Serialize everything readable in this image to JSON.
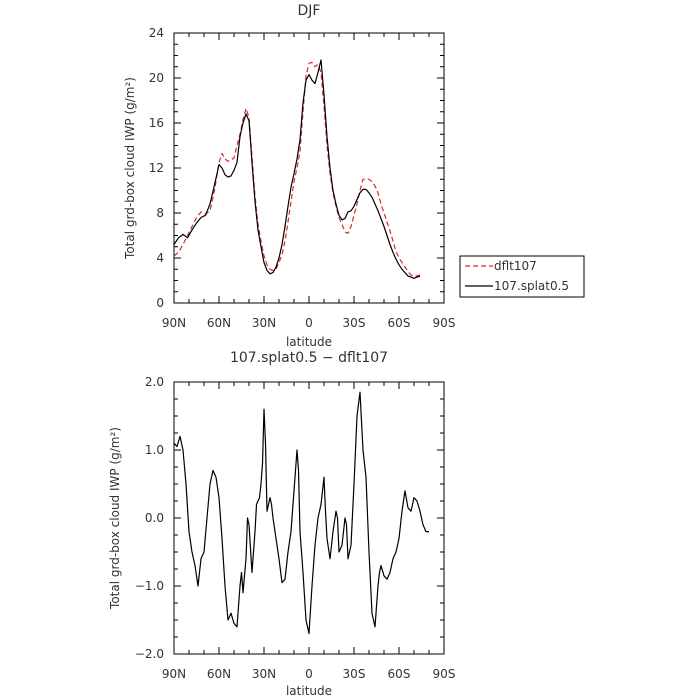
{
  "chart_data": [
    {
      "type": "line",
      "title": "DJF",
      "xlabel": "latitude",
      "ylabel": "Total grd-box cloud IWP (g/m²)",
      "xlim": [
        90,
        -90
      ],
      "ylim": [
        0,
        24
      ],
      "x_ticks": [
        90,
        60,
        30,
        0,
        -30,
        -60,
        -90
      ],
      "x_tick_labels": [
        "90N",
        "60N",
        "30N",
        "0",
        "30S",
        "60S",
        "90S"
      ],
      "y_ticks": [
        0,
        4,
        8,
        12,
        16,
        20,
        24
      ],
      "y_tick_labels": [
        "0",
        "4",
        "8",
        "12",
        "16",
        "20",
        "24"
      ],
      "legend_position": "right",
      "series": [
        {
          "name": "dflt107",
          "color": "#d62728",
          "dash": "dashed",
          "points": [
            [
              90,
              4.2
            ],
            [
              87,
              4.5
            ],
            [
              84,
              5.2
            ],
            [
              81,
              6.0
            ],
            [
              78,
              6.8
            ],
            [
              75,
              7.6
            ],
            [
              72,
              8.1
            ],
            [
              69,
              7.9
            ],
            [
              66,
              8.2
            ],
            [
              63,
              10.0
            ],
            [
              60,
              12.5
            ],
            [
              58,
              13.3
            ],
            [
              56,
              12.8
            ],
            [
              54,
              12.6
            ],
            [
              52,
              12.7
            ],
            [
              50,
              12.9
            ],
            [
              48,
              14.0
            ],
            [
              46,
              15.0
            ],
            [
              44,
              16.3
            ],
            [
              42,
              17.3
            ],
            [
              40,
              16.5
            ],
            [
              38,
              13.0
            ],
            [
              36,
              9.5
            ],
            [
              34,
              7.0
            ],
            [
              32,
              5.5
            ],
            [
              30,
              4.2
            ],
            [
              28,
              3.4
            ],
            [
              26,
              3.0
            ],
            [
              24,
              2.9
            ],
            [
              22,
              3.0
            ],
            [
              20,
              3.6
            ],
            [
              18,
              4.3
            ],
            [
              16,
              5.5
            ],
            [
              14,
              7.2
            ],
            [
              12,
              9.0
            ],
            [
              10,
              10.8
            ],
            [
              8,
              12.0
            ],
            [
              6,
              13.5
            ],
            [
              4,
              17.0
            ],
            [
              2,
              20.2
            ],
            [
              0,
              21.3
            ],
            [
              -2,
              21.4
            ],
            [
              -4,
              21.0
            ],
            [
              -6,
              21.2
            ],
            [
              -8,
              20.5
            ],
            [
              -10,
              17.5
            ],
            [
              -12,
              14.0
            ],
            [
              -14,
              11.5
            ],
            [
              -16,
              9.8
            ],
            [
              -18,
              8.6
            ],
            [
              -20,
              7.6
            ],
            [
              -22,
              7.0
            ],
            [
              -24,
              6.3
            ],
            [
              -26,
              6.2
            ],
            [
              -28,
              6.8
            ],
            [
              -30,
              7.8
            ],
            [
              -32,
              8.8
            ],
            [
              -34,
              10.0
            ],
            [
              -36,
              11.0
            ],
            [
              -38,
              11.0
            ],
            [
              -40,
              11.0
            ],
            [
              -42,
              10.8
            ],
            [
              -44,
              10.4
            ],
            [
              -46,
              9.8
            ],
            [
              -48,
              8.8
            ],
            [
              -50,
              8.0
            ],
            [
              -52,
              7.2
            ],
            [
              -54,
              6.4
            ],
            [
              -56,
              5.5
            ],
            [
              -58,
              4.6
            ],
            [
              -60,
              4.0
            ],
            [
              -62,
              3.6
            ],
            [
              -64,
              3.2
            ],
            [
              -66,
              2.8
            ],
            [
              -68,
              2.5
            ],
            [
              -70,
              2.4
            ],
            [
              -72,
              2.4
            ],
            [
              -74,
              2.5
            ]
          ]
        },
        {
          "name": "107.splat0.5",
          "color": "#000000",
          "dash": "solid",
          "points": [
            [
              90,
              5.2
            ],
            [
              87,
              5.8
            ],
            [
              84,
              6.1
            ],
            [
              81,
              5.8
            ],
            [
              78,
              6.5
            ],
            [
              75,
              7.1
            ],
            [
              72,
              7.6
            ],
            [
              69,
              7.8
            ],
            [
              66,
              8.8
            ],
            [
              63,
              10.5
            ],
            [
              60,
              12.3
            ],
            [
              58,
              12.0
            ],
            [
              56,
              11.4
            ],
            [
              54,
              11.2
            ],
            [
              52,
              11.3
            ],
            [
              50,
              11.8
            ],
            [
              48,
              12.5
            ],
            [
              46,
              14.8
            ],
            [
              44,
              16.0
            ],
            [
              42,
              16.8
            ],
            [
              40,
              16.2
            ],
            [
              38,
              12.5
            ],
            [
              36,
              9.0
            ],
            [
              34,
              6.5
            ],
            [
              32,
              5.0
            ],
            [
              30,
              3.6
            ],
            [
              28,
              2.9
            ],
            [
              26,
              2.6
            ],
            [
              24,
              2.7
            ],
            [
              22,
              3.2
            ],
            [
              20,
              4.0
            ],
            [
              18,
              5.2
            ],
            [
              16,
              6.8
            ],
            [
              14,
              8.6
            ],
            [
              12,
              10.3
            ],
            [
              10,
              11.5
            ],
            [
              8,
              12.8
            ],
            [
              6,
              14.5
            ],
            [
              4,
              17.8
            ],
            [
              2,
              19.8
            ],
            [
              0,
              20.3
            ],
            [
              -2,
              19.8
            ],
            [
              -4,
              19.5
            ],
            [
              -6,
              20.5
            ],
            [
              -8,
              21.6
            ],
            [
              -10,
              18.5
            ],
            [
              -12,
              14.8
            ],
            [
              -14,
              12.0
            ],
            [
              -16,
              10.0
            ],
            [
              -18,
              8.8
            ],
            [
              -20,
              7.8
            ],
            [
              -22,
              7.4
            ],
            [
              -24,
              7.5
            ],
            [
              -26,
              8.1
            ],
            [
              -28,
              8.2
            ],
            [
              -30,
              8.6
            ],
            [
              -32,
              9.2
            ],
            [
              -34,
              9.8
            ],
            [
              -36,
              10.1
            ],
            [
              -38,
              10.1
            ],
            [
              -40,
              9.8
            ],
            [
              -42,
              9.4
            ],
            [
              -44,
              8.8
            ],
            [
              -46,
              8.2
            ],
            [
              -48,
              7.5
            ],
            [
              -50,
              6.8
            ],
            [
              -52,
              6.0
            ],
            [
              -54,
              5.2
            ],
            [
              -56,
              4.5
            ],
            [
              -58,
              3.9
            ],
            [
              -60,
              3.4
            ],
            [
              -62,
              3.0
            ],
            [
              -64,
              2.7
            ],
            [
              -66,
              2.4
            ],
            [
              -68,
              2.3
            ],
            [
              -70,
              2.2
            ],
            [
              -72,
              2.3
            ],
            [
              -74,
              2.4
            ]
          ]
        }
      ]
    },
    {
      "type": "line",
      "title": "107.splat0.5 − dflt107",
      "xlabel": "latitude",
      "ylabel": "Total grd-box cloud IWP (g/m²)",
      "xlim": [
        90,
        -90
      ],
      "ylim": [
        -2.0,
        2.0
      ],
      "x_ticks": [
        90,
        60,
        30,
        0,
        -30,
        -60,
        -90
      ],
      "x_tick_labels": [
        "90N",
        "60N",
        "30N",
        "0",
        "30S",
        "60S",
        "90S"
      ],
      "y_ticks": [
        -2.0,
        -1.0,
        0.0,
        1.0,
        2.0
      ],
      "y_tick_labels": [
        "−2.0",
        "−1.0",
        "0.0",
        "1.0",
        "2.0"
      ],
      "series": [
        {
          "color": "#000000",
          "dash": "solid",
          "points": [
            [
              90,
              1.1
            ],
            [
              88,
              1.05
            ],
            [
              86,
              1.2
            ],
            [
              84,
              1.0
            ],
            [
              82,
              0.5
            ],
            [
              80,
              -0.2
            ],
            [
              78,
              -0.5
            ],
            [
              76,
              -0.7
            ],
            [
              74,
              -1.0
            ],
            [
              72,
              -0.6
            ],
            [
              70,
              -0.5
            ],
            [
              68,
              0.0
            ],
            [
              66,
              0.5
            ],
            [
              64,
              0.7
            ],
            [
              62,
              0.6
            ],
            [
              60,
              0.3
            ],
            [
              58,
              -0.3
            ],
            [
              56,
              -1.0
            ],
            [
              54,
              -1.5
            ],
            [
              52,
              -1.4
            ],
            [
              50,
              -1.55
            ],
            [
              48,
              -1.6
            ],
            [
              46,
              -1.0
            ],
            [
              45,
              -0.8
            ],
            [
              44,
              -1.1
            ],
            [
              42,
              -0.6
            ],
            [
              41,
              0.0
            ],
            [
              40,
              -0.1
            ],
            [
              38,
              -0.8
            ],
            [
              36,
              -0.2
            ],
            [
              35,
              0.2
            ],
            [
              33,
              0.3
            ],
            [
              32,
              0.5
            ],
            [
              31,
              0.8
            ],
            [
              30,
              1.6
            ],
            [
              29,
              1.1
            ],
            [
              28,
              0.1
            ],
            [
              26,
              0.3
            ],
            [
              25,
              0.2
            ],
            [
              24,
              0.0
            ],
            [
              22,
              -0.3
            ],
            [
              20,
              -0.6
            ],
            [
              18,
              -0.95
            ],
            [
              16,
              -0.9
            ],
            [
              14,
              -0.5
            ],
            [
              12,
              -0.2
            ],
            [
              10,
              0.4
            ],
            [
              8,
              1.0
            ],
            [
              7,
              0.7
            ],
            [
              6,
              -0.2
            ],
            [
              4,
              -0.8
            ],
            [
              2,
              -1.5
            ],
            [
              0,
              -1.7
            ],
            [
              -2,
              -1.0
            ],
            [
              -4,
              -0.4
            ],
            [
              -6,
              0.0
            ],
            [
              -8,
              0.2
            ],
            [
              -10,
              0.6
            ],
            [
              -11,
              0.1
            ],
            [
              -12,
              -0.3
            ],
            [
              -14,
              -0.6
            ],
            [
              -16,
              -0.2
            ],
            [
              -18,
              0.1
            ],
            [
              -19,
              0.0
            ],
            [
              -20,
              -0.5
            ],
            [
              -22,
              -0.4
            ],
            [
              -24,
              0.0
            ],
            [
              -25,
              -0.1
            ],
            [
              -26,
              -0.6
            ],
            [
              -28,
              -0.4
            ],
            [
              -30,
              0.5
            ],
            [
              -32,
              1.5
            ],
            [
              -34,
              1.85
            ],
            [
              -36,
              1.0
            ],
            [
              -38,
              0.6
            ],
            [
              -40,
              -0.5
            ],
            [
              -42,
              -1.4
            ],
            [
              -44,
              -1.6
            ],
            [
              -46,
              -1.0
            ],
            [
              -47,
              -0.8
            ],
            [
              -48,
              -0.7
            ],
            [
              -50,
              -0.85
            ],
            [
              -52,
              -0.9
            ],
            [
              -54,
              -0.8
            ],
            [
              -56,
              -0.6
            ],
            [
              -58,
              -0.5
            ],
            [
              -60,
              -0.3
            ],
            [
              -62,
              0.1
            ],
            [
              -64,
              0.4
            ],
            [
              -66,
              0.15
            ],
            [
              -68,
              0.1
            ],
            [
              -70,
              0.3
            ],
            [
              -72,
              0.25
            ],
            [
              -74,
              0.1
            ],
            [
              -76,
              -0.1
            ],
            [
              -78,
              -0.2
            ],
            [
              -80,
              -0.2
            ]
          ]
        }
      ]
    }
  ]
}
